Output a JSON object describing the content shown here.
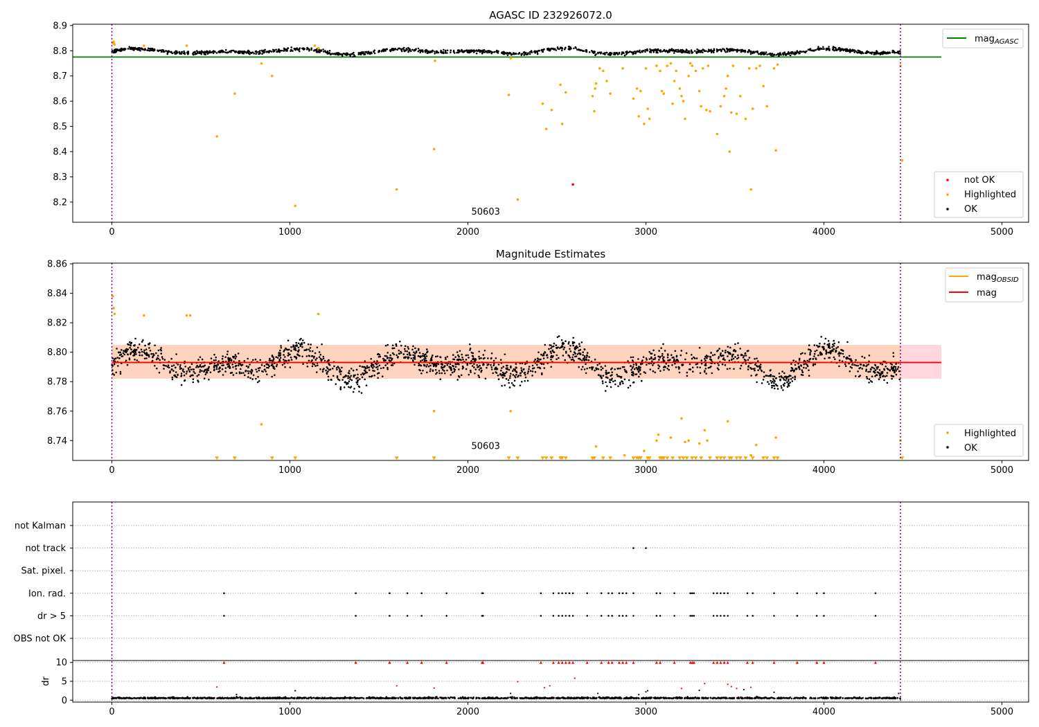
{
  "chart_data": [
    {
      "type": "scatter",
      "title": "AGASC ID 232926072.0",
      "xlim": [
        -220,
        5150
      ],
      "ylim": [
        8.12,
        8.905
      ],
      "x_ticks": [
        0,
        1000,
        2000,
        3000,
        4000,
        5000
      ],
      "y_ticks": [
        8.2,
        8.3,
        8.4,
        8.5,
        8.6,
        8.7,
        8.8,
        8.9
      ],
      "y_tick_labels": [
        "8.2",
        "8.3",
        "8.4",
        "8.5",
        "8.6",
        "8.7",
        "8.8",
        "8.9"
      ],
      "obsid_label": {
        "text": "50603",
        "x": 2100,
        "y": 8.125
      },
      "vlines_x": [
        0,
        4430
      ],
      "mag_agasc": 8.775,
      "mag_agasc_x_extent": [
        0,
        4660
      ],
      "ok_band": {
        "x": [
          0,
          4430
        ],
        "center": 8.797,
        "amplitude": 0.012,
        "spread": 0.006
      },
      "series": [
        {
          "name": "not OK",
          "color": "#ff0000",
          "points": [
            [
              2590,
              8.27
            ]
          ]
        },
        {
          "name": "Highlighted",
          "color": "#ffa500",
          "points": [
            [
              5,
              8.83
            ],
            [
              10,
              8.835
            ],
            [
              15,
              8.825
            ],
            [
              180,
              8.82
            ],
            [
              420,
              8.82
            ],
            [
              590,
              8.46
            ],
            [
              690,
              8.63
            ],
            [
              840,
              8.75
            ],
            [
              900,
              8.7
            ],
            [
              1030,
              8.185
            ],
            [
              1140,
              8.82
            ],
            [
              1160,
              8.81
            ],
            [
              1600,
              8.25
            ],
            [
              1810,
              8.41
            ],
            [
              1815,
              8.76
            ],
            [
              2230,
              8.625
            ],
            [
              2240,
              8.77
            ],
            [
              2280,
              8.21
            ],
            [
              2420,
              8.59
            ],
            [
              2440,
              8.49
            ],
            [
              2470,
              8.565
            ],
            [
              2520,
              8.665
            ],
            [
              2530,
              8.51
            ],
            [
              2550,
              8.635
            ],
            [
              2700,
              8.62
            ],
            [
              2710,
              8.56
            ],
            [
              2715,
              8.65
            ],
            [
              2720,
              8.67
            ],
            [
              2740,
              8.73
            ],
            [
              2760,
              8.72
            ],
            [
              2780,
              8.68
            ],
            [
              2800,
              8.63
            ],
            [
              2870,
              8.73
            ],
            [
              2930,
              8.61
            ],
            [
              2950,
              8.65
            ],
            [
              2960,
              8.54
            ],
            [
              2970,
              8.64
            ],
            [
              2990,
              8.51
            ],
            [
              3000,
              8.73
            ],
            [
              3010,
              8.57
            ],
            [
              3020,
              8.53
            ],
            [
              3060,
              8.74
            ],
            [
              3080,
              8.72
            ],
            [
              3090,
              8.64
            ],
            [
              3100,
              8.63
            ],
            [
              3120,
              8.74
            ],
            [
              3140,
              8.75
            ],
            [
              3150,
              8.59
            ],
            [
              3160,
              8.68
            ],
            [
              3170,
              8.72
            ],
            [
              3190,
              8.65
            ],
            [
              3200,
              8.62
            ],
            [
              3210,
              8.6
            ],
            [
              3220,
              8.53
            ],
            [
              3240,
              8.7
            ],
            [
              3250,
              8.75
            ],
            [
              3260,
              8.74
            ],
            [
              3280,
              8.72
            ],
            [
              3300,
              8.64
            ],
            [
              3310,
              8.58
            ],
            [
              3320,
              8.73
            ],
            [
              3340,
              8.565
            ],
            [
              3350,
              8.74
            ],
            [
              3360,
              8.56
            ],
            [
              3400,
              8.47
            ],
            [
              3420,
              8.58
            ],
            [
              3440,
              8.62
            ],
            [
              3450,
              8.65
            ],
            [
              3460,
              8.7
            ],
            [
              3470,
              8.4
            ],
            [
              3480,
              8.555
            ],
            [
              3490,
              8.74
            ],
            [
              3510,
              8.55
            ],
            [
              3530,
              8.62
            ],
            [
              3560,
              8.53
            ],
            [
              3580,
              8.73
            ],
            [
              3590,
              8.25
            ],
            [
              3600,
              8.57
            ],
            [
              3620,
              8.73
            ],
            [
              3640,
              8.74
            ],
            [
              3660,
              8.66
            ],
            [
              3680,
              8.58
            ],
            [
              3720,
              8.73
            ],
            [
              3730,
              8.405
            ],
            [
              3740,
              8.745
            ],
            [
              4430,
              8.74
            ],
            [
              4440,
              8.365
            ]
          ]
        }
      ],
      "legends": {
        "upper": [
          {
            "label": "mag",
            "subscript": "AGASC",
            "color": "#008000"
          }
        ],
        "lower": [
          {
            "label": "not OK",
            "color": "#ff0000"
          },
          {
            "label": "Highlighted",
            "color": "#ffa500"
          },
          {
            "label": "OK",
            "color": "#000000"
          }
        ]
      }
    },
    {
      "type": "scatter",
      "title": "Magnitude Estimates",
      "xlim": [
        -220,
        5150
      ],
      "ylim": [
        8.7265,
        8.8605
      ],
      "x_ticks": [
        0,
        1000,
        2000,
        3000,
        4000,
        5000
      ],
      "y_ticks": [
        8.74,
        8.76,
        8.78,
        8.8,
        8.82,
        8.84,
        8.86
      ],
      "y_tick_labels": [
        "8.74",
        "8.76",
        "8.78",
        "8.80",
        "8.82",
        "8.84",
        "8.86"
      ],
      "obsid_label": {
        "text": "50603",
        "x": 2100,
        "y": 8.729
      },
      "vlines_x": [
        0,
        4430
      ],
      "mag": 8.793,
      "mag_obsid": 8.793,
      "mag_band": [
        8.782,
        8.805
      ],
      "mag_band_x_extent": [
        0,
        4660
      ],
      "mag_obsid_band_x_extent": [
        0,
        4430
      ],
      "ok_band": {
        "x": [
          0,
          4430
        ],
        "center": 8.792,
        "amplitude": 0.011,
        "spread": 0.007
      },
      "series": [
        {
          "name": "Highlighted",
          "color": "#ffa500",
          "points": [
            [
              5,
              8.838
            ],
            [
              10,
              8.83
            ],
            [
              15,
              8.826
            ],
            [
              180,
              8.825
            ],
            [
              420,
              8.825
            ],
            [
              440,
              8.825
            ],
            [
              840,
              8.751
            ],
            [
              1160,
              8.826
            ],
            [
              1810,
              8.76
            ],
            [
              2240,
              8.76
            ],
            [
              2720,
              8.736
            ],
            [
              2880,
              8.73
            ],
            [
              2990,
              8.733
            ],
            [
              3060,
              8.74
            ],
            [
              3070,
              8.744
            ],
            [
              3140,
              8.742
            ],
            [
              3200,
              8.755
            ],
            [
              3220,
              8.739
            ],
            [
              3240,
              8.74
            ],
            [
              3300,
              8.738
            ],
            [
              3330,
              8.747
            ],
            [
              3345,
              8.74
            ],
            [
              3460,
              8.753
            ],
            [
              3590,
              8.73
            ],
            [
              3620,
              8.737
            ],
            [
              3730,
              8.742
            ],
            [
              4430,
              8.74
            ]
          ]
        },
        {
          "name": "Highlighted-below-axis",
          "color": "#ffa500",
          "points": [
            [
              590,
              8.728
            ],
            [
              690,
              8.728
            ],
            [
              900,
              8.728
            ],
            [
              1030,
              8.728
            ],
            [
              1600,
              8.728
            ],
            [
              1810,
              8.728
            ],
            [
              2230,
              8.728
            ],
            [
              2280,
              8.728
            ],
            [
              2420,
              8.728
            ],
            [
              2440,
              8.728
            ],
            [
              2470,
              8.728
            ],
            [
              2520,
              8.728
            ],
            [
              2530,
              8.728
            ],
            [
              2550,
              8.728
            ],
            [
              2700,
              8.728
            ],
            [
              2710,
              8.728
            ],
            [
              2760,
              8.728
            ],
            [
              2800,
              8.728
            ],
            [
              2930,
              8.728
            ],
            [
              2950,
              8.728
            ],
            [
              2960,
              8.728
            ],
            [
              2970,
              8.728
            ],
            [
              3010,
              8.728
            ],
            [
              3020,
              8.728
            ],
            [
              3080,
              8.728
            ],
            [
              3090,
              8.728
            ],
            [
              3100,
              8.728
            ],
            [
              3120,
              8.728
            ],
            [
              3150,
              8.728
            ],
            [
              3190,
              8.728
            ],
            [
              3210,
              8.728
            ],
            [
              3230,
              8.728
            ],
            [
              3260,
              8.728
            ],
            [
              3280,
              8.728
            ],
            [
              3310,
              8.728
            ],
            [
              3360,
              8.728
            ],
            [
              3400,
              8.728
            ],
            [
              3420,
              8.728
            ],
            [
              3440,
              8.728
            ],
            [
              3470,
              8.728
            ],
            [
              3480,
              8.728
            ],
            [
              3510,
              8.728
            ],
            [
              3530,
              8.728
            ],
            [
              3560,
              8.728
            ],
            [
              3600,
              8.728
            ],
            [
              3660,
              8.728
            ],
            [
              3680,
              8.728
            ],
            [
              3720,
              8.728
            ],
            [
              3740,
              8.728
            ],
            [
              4440,
              8.728
            ]
          ]
        }
      ],
      "legends": {
        "upper": [
          {
            "label": "mag",
            "subscript": "OBSID",
            "color": "#ffa500"
          },
          {
            "label": "mag",
            "subscript": "",
            "color": "#ff0000"
          }
        ],
        "lower": [
          {
            "label": "Highlighted",
            "color": "#ffa500"
          },
          {
            "label": "OK",
            "color": "#000000"
          }
        ]
      }
    },
    {
      "type": "scatter",
      "title": "",
      "xlim": [
        -220,
        5150
      ],
      "x_ticks": [
        0,
        1000,
        2000,
        3000,
        4000,
        5000
      ],
      "vlines_x": [
        0,
        4430
      ],
      "flag_rows": [
        "not Kalman",
        "not track",
        "Sat. pixel.",
        "Ion. rad.",
        "dr > 5",
        "OBS not OK"
      ],
      "flag_points": {
        "not track": [
          2930,
          3000
        ],
        "Ion. rad.": [
          630,
          1370,
          1560,
          1660,
          1740,
          1880,
          2080,
          2085,
          2410,
          2480,
          2510,
          2530,
          2550,
          2570,
          2590,
          2670,
          2750,
          2790,
          2810,
          2850,
          2870,
          2890,
          2930,
          3060,
          3080,
          3160,
          3250,
          3260,
          3270,
          3380,
          3400,
          3420,
          3440,
          3460,
          3570,
          3600,
          3720,
          3850,
          3960,
          4000,
          4290
        ],
        "dr > 5": [
          630,
          1370,
          1560,
          1660,
          1740,
          1880,
          2080,
          2085,
          2410,
          2480,
          2510,
          2530,
          2550,
          2570,
          2590,
          2670,
          2750,
          2790,
          2810,
          2850,
          2870,
          2890,
          2930,
          3060,
          3080,
          3160,
          3250,
          3260,
          3270,
          3380,
          3400,
          3420,
          3440,
          3460,
          3570,
          3600,
          3720,
          3850,
          3960,
          4000,
          4290
        ]
      },
      "dr": {
        "ylabel": "dr",
        "ylim": [
          -0.5,
          10.5
        ],
        "y_ticks": [
          0,
          5,
          10
        ],
        "clipped_at": 10,
        "outliers": [
          [
            590,
            3.5
          ],
          [
            700,
            1.5
          ],
          [
            1030,
            2.5
          ],
          [
            1600,
            3.8
          ],
          [
            1810,
            3.2
          ],
          [
            2240,
            1.8
          ],
          [
            2280,
            4.9
          ],
          [
            2430,
            3.3
          ],
          [
            2460,
            3.8
          ],
          [
            2600,
            5.8
          ],
          [
            2730,
            1.8
          ],
          [
            2960,
            1.5
          ],
          [
            3000,
            2.2
          ],
          [
            3010,
            2.5
          ],
          [
            3200,
            3.1
          ],
          [
            3300,
            2.6
          ],
          [
            3330,
            4.4
          ],
          [
            3460,
            4.2
          ],
          [
            3480,
            3.6
          ],
          [
            3510,
            3.1
          ],
          [
            3550,
            2.8
          ],
          [
            3590,
            3.4
          ],
          [
            3720,
            2.1
          ],
          [
            4420,
            1.8
          ]
        ]
      }
    }
  ]
}
